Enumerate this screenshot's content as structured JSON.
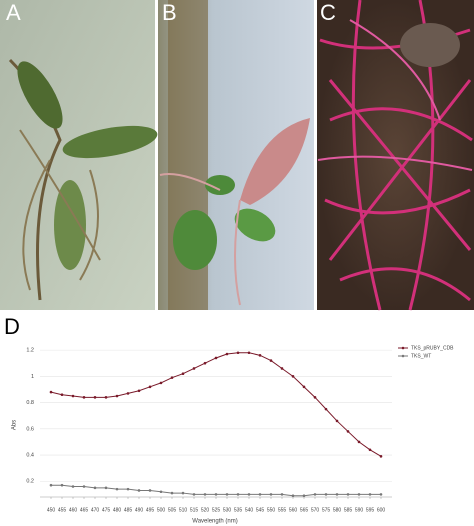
{
  "panels": {
    "labels": [
      "A",
      "B",
      "C",
      "D"
    ]
  },
  "chart_data": {
    "type": "line",
    "y_label": "Abs",
    "x_label": "Wavelength (nm)",
    "x": [
      450,
      455,
      460,
      465,
      470,
      475,
      480,
      485,
      490,
      495,
      500,
      505,
      510,
      515,
      520,
      525,
      530,
      535,
      540,
      545,
      550,
      555,
      560,
      565,
      570,
      575,
      580,
      585,
      590,
      595,
      600
    ],
    "xlim": [
      445,
      605
    ],
    "xticks": [
      450,
      455,
      460,
      465,
      470,
      475,
      480,
      485,
      490,
      495,
      500,
      505,
      510,
      515,
      520,
      525,
      530,
      535,
      540,
      545,
      550,
      555,
      560,
      565,
      570,
      575,
      580,
      585,
      590,
      595,
      600
    ],
    "ylim": [
      0.08,
      1.3
    ],
    "yticks": [
      0.2,
      0.4,
      0.6,
      0.8,
      1,
      1.2
    ],
    "grid": true,
    "legend": "top-right",
    "series": [
      {
        "name": "TKS_pRUBY_CDB",
        "color": "#7a1a2a",
        "values": [
          0.88,
          0.86,
          0.85,
          0.84,
          0.84,
          0.84,
          0.85,
          0.87,
          0.89,
          0.92,
          0.95,
          0.99,
          1.02,
          1.06,
          1.1,
          1.14,
          1.17,
          1.18,
          1.18,
          1.16,
          1.12,
          1.06,
          1.0,
          0.92,
          0.84,
          0.75,
          0.66,
          0.58,
          0.5,
          0.44,
          0.39
        ]
      },
      {
        "name": "TKS_WT",
        "color": "#777777",
        "values": [
          0.17,
          0.17,
          0.16,
          0.16,
          0.15,
          0.15,
          0.14,
          0.14,
          0.13,
          0.13,
          0.12,
          0.11,
          0.11,
          0.1,
          0.1,
          0.1,
          0.1,
          0.1,
          0.1,
          0.1,
          0.1,
          0.1,
          0.09,
          0.09,
          0.1,
          0.1,
          0.1,
          0.1,
          0.1,
          0.1,
          0.1
        ]
      }
    ]
  }
}
